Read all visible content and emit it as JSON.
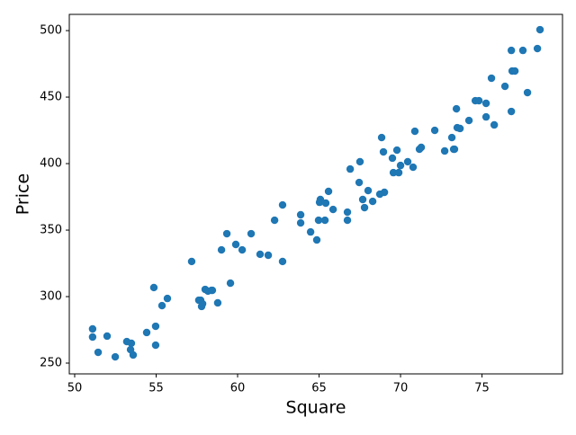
{
  "chart_data": {
    "type": "scatter",
    "x_label": "Square",
    "y_label": "Price",
    "color": "#1f77b4",
    "xlim": [
      49.67,
      79.94
    ],
    "ylim": [
      241.9,
      512.2
    ],
    "xticks": [
      50,
      55,
      60,
      65,
      70,
      75
    ],
    "yticks": [
      250,
      300,
      350,
      400,
      450,
      500
    ],
    "series": [
      {
        "name": "Price",
        "color": "#1f77b4",
        "x": [
          78.56,
          78.4,
          76.8,
          77.51,
          76.85,
          77.02,
          75.58,
          76.41,
          77.79,
          74.59,
          74.81,
          75.25,
          73.43,
          76.8,
          75.25,
          74.2,
          75.75,
          73.48,
          73.65,
          70.88,
          72.1,
          73.15,
          68.84,
          69.78,
          68.95,
          71.27,
          71.16,
          72.71,
          73.26,
          73.31,
          69.5,
          70.44,
          70.0,
          70.77,
          66.91,
          67.51,
          69.56,
          69.89,
          67.46,
          68.01,
          65.58,
          69.01,
          68.73,
          67.68,
          68.29,
          65.08,
          67.79,
          65.03,
          65.41,
          65.86,
          66.74,
          62.76,
          63.87,
          62.27,
          60.83,
          64.97,
          65.36,
          63.87,
          66.74,
          59.34,
          64.48,
          59.89,
          60.28,
          59.01,
          64.86,
          61.38,
          61.88,
          62.76,
          57.18,
          54.86,
          55.69,
          58.01,
          57.62,
          58.45,
          58.18,
          55.36,
          57.73,
          58.4,
          59.56,
          58.78,
          57.79,
          57.85,
          54.42,
          51.1,
          51.99,
          54.97,
          53.2,
          51.1,
          53.48,
          53.43,
          54.97,
          51.44,
          53.59,
          52.49
        ],
        "values": [
          500.7,
          486.5,
          485.1,
          485.1,
          469.6,
          469.6,
          464.2,
          458.1,
          453.4,
          447.3,
          447.3,
          445.3,
          441.2,
          439.2,
          435.1,
          432.4,
          429.1,
          427.0,
          426.4,
          424.3,
          425.0,
          419.6,
          419.6,
          410.1,
          408.8,
          412.2,
          410.8,
          409.5,
          410.8,
          410.8,
          404.1,
          401.4,
          398.6,
          397.3,
          395.9,
          401.4,
          393.2,
          393.2,
          385.8,
          379.7,
          379.1,
          378.4,
          377.0,
          373.0,
          371.6,
          373.0,
          366.9,
          370.9,
          370.3,
          365.5,
          363.5,
          368.9,
          361.5,
          357.4,
          347.3,
          357.4,
          357.4,
          355.4,
          357.4,
          347.3,
          348.6,
          339.2,
          335.1,
          335.1,
          342.6,
          331.8,
          331.1,
          326.4,
          326.4,
          306.8,
          298.6,
          305.4,
          297.3,
          304.7,
          304.1,
          293.2,
          297.3,
          304.7,
          310.1,
          295.3,
          292.6,
          294.6,
          273.0,
          275.7,
          270.3,
          277.7,
          266.2,
          269.6,
          264.9,
          260.1,
          263.5,
          258.1,
          256.1,
          254.7
        ]
      }
    ]
  }
}
